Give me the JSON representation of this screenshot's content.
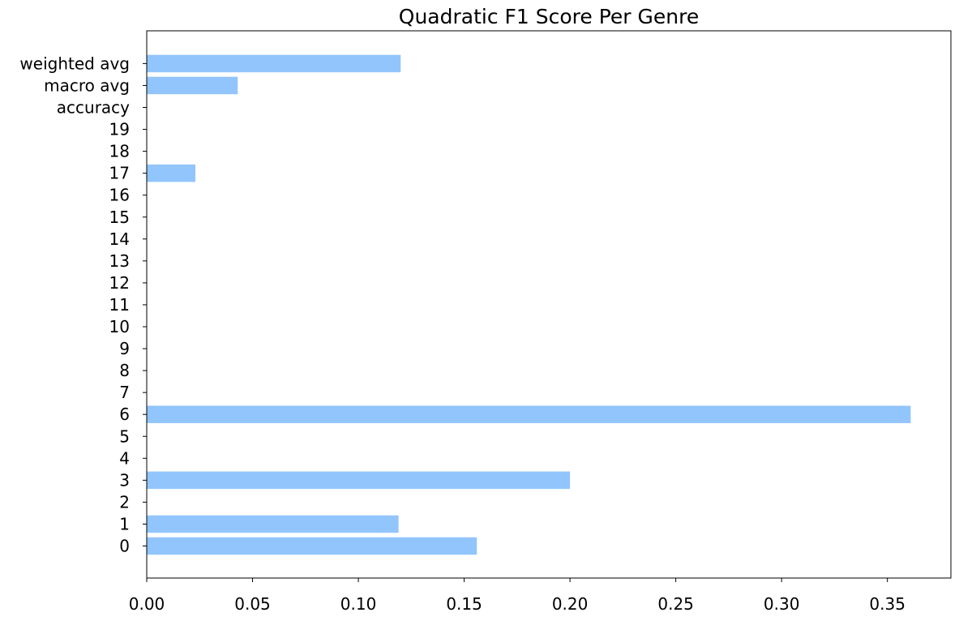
{
  "chart_data": {
    "type": "bar",
    "orientation": "horizontal",
    "title": "Quadratic F1 Score Per Genre",
    "xlabel": "",
    "ylabel": "",
    "categories": [
      "0",
      "1",
      "2",
      "3",
      "4",
      "5",
      "6",
      "7",
      "8",
      "9",
      "10",
      "11",
      "12",
      "13",
      "14",
      "15",
      "16",
      "17",
      "18",
      "19",
      "accuracy",
      "macro avg",
      "weighted avg"
    ],
    "values": [
      0.156,
      0.119,
      0,
      0.2,
      0,
      0,
      0.361,
      0,
      0,
      0,
      0,
      0,
      0,
      0,
      0,
      0,
      0,
      0.023,
      0,
      0,
      0,
      0.043,
      0.12
    ],
    "xlim": [
      0,
      0.38
    ],
    "xticks": [
      "0.00",
      "0.05",
      "0.10",
      "0.15",
      "0.20",
      "0.25",
      "0.30",
      "0.35"
    ],
    "bar_color": "#92c5fc",
    "grid": false,
    "legend": "none"
  }
}
